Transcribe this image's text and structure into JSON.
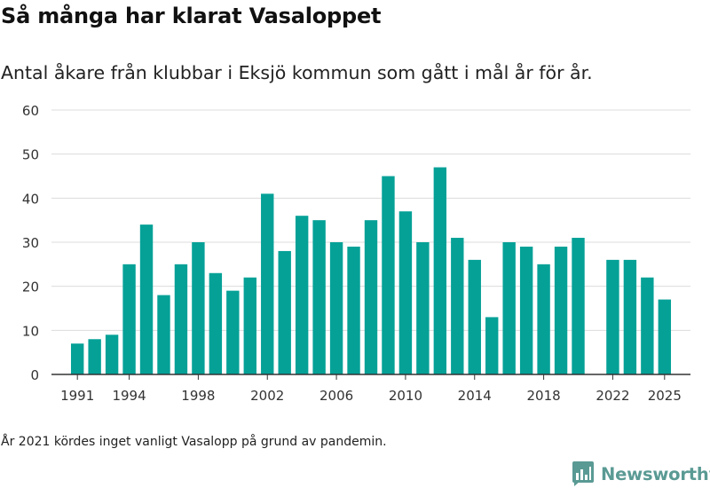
{
  "title": "Så många har klarat Vasaloppet",
  "subtitle": "Antal åkare från klubbar i Eksjö kommun som gått i mål år för år.",
  "footnote": "År 2021 kördes inget vanligt Vasalopp på grund av pandemin.",
  "brand": {
    "name": "Newsworthy",
    "color": "#5a9a94",
    "logo_icon": "bar-chart-logo-icon"
  },
  "colors": {
    "bar": "#05a197",
    "grid": "#dcdcdc",
    "axis": "#333333",
    "text": "#333333"
  },
  "chart_data": {
    "type": "bar",
    "x": [
      1991,
      1992,
      1993,
      1994,
      1995,
      1996,
      1997,
      1998,
      1999,
      2000,
      2001,
      2002,
      2003,
      2004,
      2005,
      2006,
      2007,
      2008,
      2009,
      2010,
      2011,
      2012,
      2013,
      2014,
      2015,
      2016,
      2017,
      2018,
      2019,
      2020,
      2022,
      2023,
      2024,
      2025
    ],
    "values": [
      7,
      8,
      9,
      25,
      34,
      18,
      25,
      30,
      23,
      19,
      22,
      41,
      28,
      36,
      35,
      30,
      29,
      35,
      45,
      37,
      30,
      47,
      31,
      26,
      13,
      30,
      29,
      25,
      29,
      31,
      26,
      26,
      22,
      17
    ],
    "x_tick_labels": [
      "1991",
      "1994",
      "1998",
      "2002",
      "2006",
      "2010",
      "2014",
      "2018",
      "2022",
      "2025"
    ],
    "y_ticks": [
      0,
      10,
      20,
      30,
      40,
      50,
      60
    ],
    "ylim": [
      0,
      60
    ],
    "xlim": [
      1989.5,
      2026.5
    ],
    "grid": true,
    "xlabel": "",
    "ylabel": ""
  }
}
